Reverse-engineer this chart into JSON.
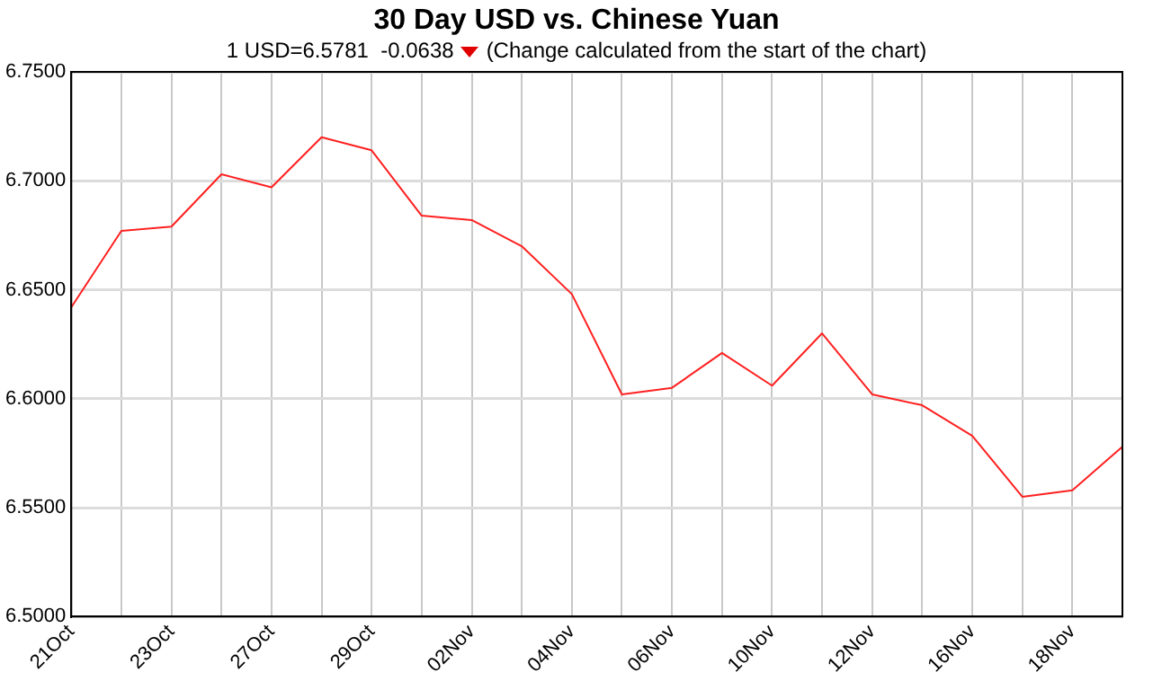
{
  "chart_data": {
    "type": "line",
    "title": "30 Day USD vs. Chinese Yuan",
    "subtitle": "1 USD=6.5781  -0.0638",
    "annotations": [
      "(Change calculated from the start of the chart)"
    ],
    "categories": [
      "21Oct",
      null,
      "23Oct",
      null,
      "27Oct",
      null,
      "29Oct",
      null,
      "02Nov",
      null,
      "04Nov",
      null,
      "06Nov",
      null,
      "10Nov",
      null,
      "12Nov",
      null,
      "16Nov",
      null,
      "18Nov",
      null
    ],
    "series": [
      {
        "color": "#ff2020",
        "values": [
          6.642,
          6.677,
          6.679,
          6.703,
          6.697,
          6.72,
          6.714,
          6.684,
          6.682,
          6.67,
          6.648,
          6.602,
          6.605,
          6.621,
          6.606,
          6.63,
          6.602,
          6.597,
          6.583,
          6.555,
          6.558,
          6.578
        ]
      }
    ],
    "ylim": [
      6.5,
      6.75
    ],
    "yticks": [
      {
        "value": 6.5,
        "label": "6.5000"
      },
      {
        "value": 6.55,
        "label": "6.5500"
      },
      {
        "value": 6.6,
        "label": "6.6000"
      },
      {
        "value": 6.65,
        "label": "6.6500"
      },
      {
        "value": 6.7,
        "label": "6.7000"
      },
      {
        "value": 6.75,
        "label": "6.7500"
      }
    ],
    "grid": true,
    "legend": false,
    "marker": "none",
    "line_style": "solid"
  }
}
